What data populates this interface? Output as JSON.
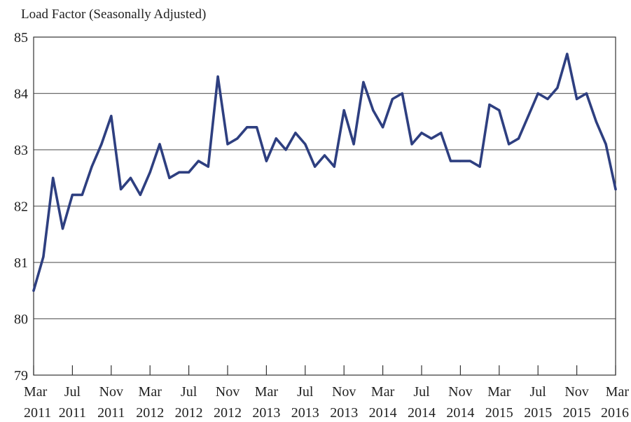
{
  "chart_data": {
    "type": "line",
    "title": "Load Factor (Seasonally Adjusted)",
    "xlabel": "",
    "ylabel": "",
    "ylim": [
      79,
      85
    ],
    "yticks": [
      79,
      80,
      81,
      82,
      83,
      84,
      85
    ],
    "grid": true,
    "line_color": "#2e3f80",
    "x_tick_labels": [
      {
        "month": "Mar",
        "year": "2011",
        "index": 0
      },
      {
        "month": "Jul",
        "year": "2011",
        "index": 4
      },
      {
        "month": "Nov",
        "year": "2011",
        "index": 8
      },
      {
        "month": "Mar",
        "year": "2012",
        "index": 12
      },
      {
        "month": "Jul",
        "year": "2012",
        "index": 16
      },
      {
        "month": "Nov",
        "year": "2012",
        "index": 20
      },
      {
        "month": "Mar",
        "year": "2013",
        "index": 24
      },
      {
        "month": "Jul",
        "year": "2013",
        "index": 28
      },
      {
        "month": "Nov",
        "year": "2013",
        "index": 32
      },
      {
        "month": "Mar",
        "year": "2014",
        "index": 36
      },
      {
        "month": "Jul",
        "year": "2014",
        "index": 40
      },
      {
        "month": "Nov",
        "year": "2014",
        "index": 44
      },
      {
        "month": "Mar",
        "year": "2015",
        "index": 48
      },
      {
        "month": "Jul",
        "year": "2015",
        "index": 52
      },
      {
        "month": "Nov",
        "year": "2015",
        "index": 56
      },
      {
        "month": "Mar",
        "year": "2016",
        "index": 60
      }
    ],
    "x": [
      "2011-03",
      "2011-04",
      "2011-05",
      "2011-06",
      "2011-07",
      "2011-08",
      "2011-09",
      "2011-10",
      "2011-11",
      "2011-12",
      "2012-01",
      "2012-02",
      "2012-03",
      "2012-04",
      "2012-05",
      "2012-06",
      "2012-07",
      "2012-08",
      "2012-09",
      "2012-10",
      "2012-11",
      "2012-12",
      "2013-01",
      "2013-02",
      "2013-03",
      "2013-04",
      "2013-05",
      "2013-06",
      "2013-07",
      "2013-08",
      "2013-09",
      "2013-10",
      "2013-11",
      "2013-12",
      "2014-01",
      "2014-02",
      "2014-03",
      "2014-04",
      "2014-05",
      "2014-06",
      "2014-07",
      "2014-08",
      "2014-09",
      "2014-10",
      "2014-11",
      "2014-12",
      "2015-01",
      "2015-02",
      "2015-03",
      "2015-04",
      "2015-05",
      "2015-06",
      "2015-07",
      "2015-08",
      "2015-09",
      "2015-10",
      "2015-11",
      "2015-12",
      "2016-01",
      "2016-02",
      "2016-03"
    ],
    "series": [
      {
        "values": [
          80.5,
          81.1,
          82.5,
          81.6,
          82.2,
          82.2,
          82.7,
          83.1,
          83.6,
          82.3,
          82.5,
          82.2,
          82.6,
          83.1,
          82.5,
          82.6,
          82.6,
          82.8,
          82.7,
          84.3,
          83.1,
          83.2,
          83.4,
          83.4,
          82.8,
          83.2,
          83.0,
          83.3,
          83.1,
          82.7,
          82.9,
          82.7,
          83.7,
          83.1,
          84.2,
          83.7,
          83.4,
          83.9,
          84.0,
          83.1,
          83.3,
          83.2,
          83.3,
          82.8,
          82.8,
          82.8,
          82.7,
          83.8,
          83.7,
          83.1,
          83.2,
          83.6,
          84.0,
          83.9,
          84.1,
          84.7,
          83.9,
          84.0,
          83.5,
          83.1,
          82.3
        ]
      }
    ]
  }
}
